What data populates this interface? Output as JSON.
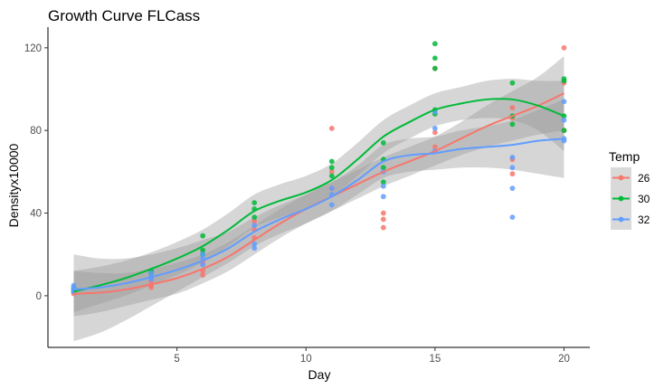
{
  "chart_data": {
    "type": "scatter",
    "title": "Growth Curve FLCass",
    "xlabel": "Day",
    "ylabel": "Densityx10000",
    "xlim": [
      0,
      21
    ],
    "ylim": [
      -25,
      130
    ],
    "xticks": [
      5,
      10,
      15,
      20
    ],
    "yticks": [
      0,
      40,
      80,
      120
    ],
    "grid": false,
    "legend": {
      "title": "Temp",
      "position": "right"
    },
    "series": [
      {
        "name": "26",
        "color": "#F8766D",
        "points": [
          [
            1,
            1
          ],
          [
            1,
            2
          ],
          [
            1,
            3
          ],
          [
            4,
            4
          ],
          [
            4,
            5
          ],
          [
            4,
            7
          ],
          [
            6,
            10
          ],
          [
            6,
            12
          ],
          [
            6,
            16
          ],
          [
            8,
            28
          ],
          [
            8,
            32
          ],
          [
            8,
            36
          ],
          [
            11,
            52
          ],
          [
            11,
            60
          ],
          [
            11,
            81
          ],
          [
            13,
            33
          ],
          [
            13,
            37
          ],
          [
            13,
            40
          ],
          [
            15,
            72
          ],
          [
            15,
            79
          ],
          [
            15,
            110
          ],
          [
            18,
            59
          ],
          [
            18,
            66
          ],
          [
            18,
            86
          ],
          [
            18,
            91
          ],
          [
            20,
            80
          ],
          [
            20,
            103
          ],
          [
            20,
            120
          ]
        ],
        "fit": [
          [
            1,
            1
          ],
          [
            2,
            1.5
          ],
          [
            3,
            3
          ],
          [
            4,
            5.5
          ],
          [
            5,
            8.5
          ],
          [
            6,
            13
          ],
          [
            7,
            19
          ],
          [
            8,
            27
          ],
          [
            9,
            35
          ],
          [
            10,
            42
          ],
          [
            11,
            48
          ],
          [
            12,
            54
          ],
          [
            13,
            60
          ],
          [
            14,
            65
          ],
          [
            15,
            70
          ],
          [
            16,
            76
          ],
          [
            17,
            82
          ],
          [
            18,
            87
          ],
          [
            19,
            92
          ],
          [
            20,
            98
          ]
        ],
        "band": [
          [
            1,
            -10,
            12
          ],
          [
            2,
            -8,
            11
          ],
          [
            3,
            -5,
            11
          ],
          [
            4,
            -2,
            13
          ],
          [
            5,
            1,
            16
          ],
          [
            6,
            6,
            20
          ],
          [
            7,
            12,
            26
          ],
          [
            8,
            20,
            34
          ],
          [
            9,
            28,
            42
          ],
          [
            10,
            35,
            49
          ],
          [
            11,
            41,
            55
          ],
          [
            12,
            47,
            61
          ],
          [
            13,
            53,
            67
          ],
          [
            14,
            58,
            72
          ],
          [
            15,
            63,
            77
          ],
          [
            16,
            68,
            84
          ],
          [
            17,
            72,
            92
          ],
          [
            18,
            75,
            99
          ],
          [
            19,
            78,
            106
          ],
          [
            20,
            80,
            116
          ]
        ]
      },
      {
        "name": "30",
        "color": "#00BA38",
        "points": [
          [
            1,
            2
          ],
          [
            1,
            3
          ],
          [
            1,
            4
          ],
          [
            4,
            9
          ],
          [
            4,
            11
          ],
          [
            4,
            12
          ],
          [
            6,
            20
          ],
          [
            6,
            22
          ],
          [
            6,
            29
          ],
          [
            8,
            38
          ],
          [
            8,
            42
          ],
          [
            8,
            45
          ],
          [
            11,
            58
          ],
          [
            11,
            62
          ],
          [
            11,
            65
          ],
          [
            13,
            55
          ],
          [
            13,
            62
          ],
          [
            13,
            66
          ],
          [
            13,
            74
          ],
          [
            15,
            88
          ],
          [
            15,
            90
          ],
          [
            15,
            110
          ],
          [
            15,
            115
          ],
          [
            15,
            122
          ],
          [
            18,
            83
          ],
          [
            18,
            87
          ],
          [
            18,
            103
          ],
          [
            20,
            80
          ],
          [
            20,
            87
          ],
          [
            20,
            104
          ],
          [
            20,
            105
          ]
        ],
        "fit": [
          [
            1,
            2
          ],
          [
            2,
            5
          ],
          [
            3,
            8.5
          ],
          [
            4,
            13
          ],
          [
            5,
            18
          ],
          [
            6,
            24
          ],
          [
            7,
            32
          ],
          [
            8,
            41
          ],
          [
            9,
            46
          ],
          [
            10,
            50
          ],
          [
            11,
            56
          ],
          [
            12,
            66
          ],
          [
            13,
            77
          ],
          [
            14,
            84
          ],
          [
            15,
            90
          ],
          [
            16,
            93
          ],
          [
            17,
            95
          ],
          [
            18,
            95
          ],
          [
            19,
            92
          ],
          [
            20,
            87
          ]
        ],
        "band": [
          [
            1,
            -8,
            12
          ],
          [
            2,
            -4,
            14
          ],
          [
            3,
            0,
            17
          ],
          [
            4,
            5,
            21
          ],
          [
            5,
            10,
            26
          ],
          [
            6,
            16,
            32
          ],
          [
            7,
            24,
            40
          ],
          [
            8,
            33,
            49
          ],
          [
            9,
            38,
            54
          ],
          [
            10,
            42,
            58
          ],
          [
            11,
            48,
            64
          ],
          [
            12,
            58,
            74
          ],
          [
            13,
            69,
            85
          ],
          [
            14,
            76,
            92
          ],
          [
            15,
            82,
            98
          ],
          [
            16,
            85,
            101
          ],
          [
            17,
            86,
            104
          ],
          [
            18,
            85,
            105
          ],
          [
            19,
            80,
            104
          ],
          [
            20,
            70,
            104
          ]
        ]
      },
      {
        "name": "32",
        "color": "#619CFF",
        "points": [
          [
            1,
            2
          ],
          [
            1,
            3
          ],
          [
            1,
            4
          ],
          [
            1,
            5
          ],
          [
            4,
            8
          ],
          [
            4,
            9
          ],
          [
            4,
            11
          ],
          [
            6,
            15
          ],
          [
            6,
            18
          ],
          [
            6,
            20
          ],
          [
            8,
            23
          ],
          [
            8,
            25
          ],
          [
            8,
            34
          ],
          [
            11,
            44
          ],
          [
            11,
            49
          ],
          [
            11,
            52
          ],
          [
            13,
            48
          ],
          [
            13,
            53
          ],
          [
            13,
            60
          ],
          [
            15,
            70
          ],
          [
            15,
            81
          ],
          [
            15,
            89
          ],
          [
            18,
            38
          ],
          [
            18,
            52
          ],
          [
            18,
            62
          ],
          [
            18,
            67
          ],
          [
            20,
            75
          ],
          [
            20,
            76
          ],
          [
            20,
            85
          ],
          [
            20,
            94
          ]
        ],
        "fit": [
          [
            1,
            3
          ],
          [
            2,
            4
          ],
          [
            3,
            6
          ],
          [
            4,
            9
          ],
          [
            5,
            12.5
          ],
          [
            6,
            17
          ],
          [
            7,
            23
          ],
          [
            8,
            31
          ],
          [
            9,
            37
          ],
          [
            10,
            42
          ],
          [
            11,
            48
          ],
          [
            12,
            56
          ],
          [
            13,
            65
          ],
          [
            14,
            68
          ],
          [
            15,
            69
          ],
          [
            16,
            71
          ],
          [
            17,
            72
          ],
          [
            18,
            73
          ],
          [
            19,
            75
          ],
          [
            20,
            76
          ]
        ],
        "band": [
          [
            1,
            -22,
            20
          ],
          [
            2,
            -18,
            18
          ],
          [
            3,
            -12,
            18
          ],
          [
            4,
            -5,
            20
          ],
          [
            5,
            2,
            23
          ],
          [
            6,
            9,
            27
          ],
          [
            7,
            16,
            31
          ],
          [
            8,
            24,
            38
          ],
          [
            9,
            30,
            44
          ],
          [
            10,
            35,
            49
          ],
          [
            11,
            41,
            55
          ],
          [
            12,
            49,
            63
          ],
          [
            13,
            57,
            73
          ],
          [
            14,
            60,
            76
          ],
          [
            15,
            61,
            77
          ],
          [
            16,
            62,
            80
          ],
          [
            17,
            62,
            82
          ],
          [
            18,
            61,
            85
          ],
          [
            19,
            59,
            90
          ],
          [
            20,
            57,
            95
          ]
        ]
      }
    ]
  }
}
